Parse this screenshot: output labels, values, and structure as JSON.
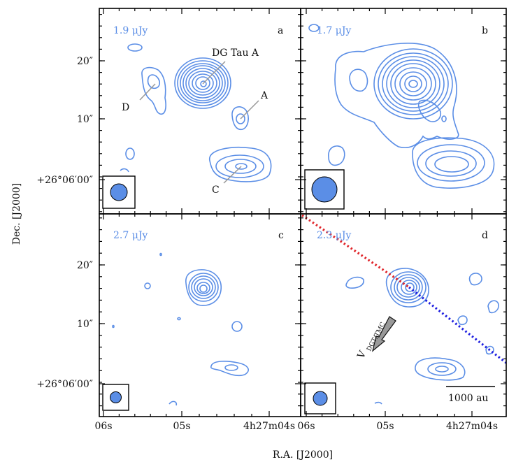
{
  "chart_data": {
    "type": "contour",
    "xlabel": "R.A. [J2000]",
    "ylabel": "Dec. [J2000]",
    "x_ticks": [
      "06s",
      "05s",
      "4h27m04s"
    ],
    "y_ticks": [
      "20″",
      "10″",
      "+26°06′00″"
    ],
    "contour_color": "#5b8ee6",
    "panels": [
      {
        "letter": "a",
        "noise": "1.9 μJy",
        "annotations": [
          {
            "label": "DG Tau A"
          },
          {
            "label": "A"
          },
          {
            "label": "C"
          },
          {
            "label": "D"
          }
        ]
      },
      {
        "letter": "b",
        "noise": "1.7 μJy",
        "annotations": []
      },
      {
        "letter": "c",
        "noise": "2.7 μJy",
        "annotations": []
      },
      {
        "letter": "d",
        "noise": "2.3 μJy",
        "annotations": [
          {
            "label": "V",
            "subscript": "DGT/TMC"
          }
        ],
        "scalebar": "1000 au",
        "lines": [
          {
            "style": "dotted",
            "color": "#e0252a"
          },
          {
            "style": "dotted",
            "color": "#2020e0"
          }
        ]
      }
    ]
  }
}
